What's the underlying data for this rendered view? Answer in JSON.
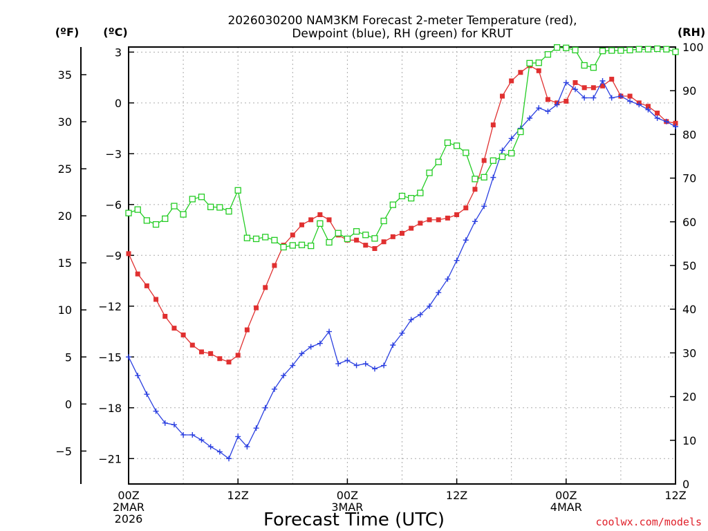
{
  "title_line1": "2026030200 NAM3KM Forecast 2-meter Temperature (red),",
  "title_line2": "Dewpoint (blue), RH (green) for KRUT",
  "unit_f": "(ºF)",
  "unit_c": "(ºC)",
  "unit_rh": "(RH)",
  "credit": "coolwx.com/models",
  "chart_data": {
    "type": "line",
    "title": "2026030200 NAM3KM Forecast 2-meter Temperature (red), Dewpoint (blue), RH (green) for KRUT",
    "xlabel": "Forecast Time (UTC)",
    "x_unit": "forecast hour",
    "xlim": [
      0,
      60
    ],
    "x_ticks": [
      {
        "hour": 0,
        "lines": [
          "00Z",
          "2MAR",
          "2026"
        ]
      },
      {
        "hour": 12,
        "lines": [
          "12Z"
        ]
      },
      {
        "hour": 24,
        "lines": [
          "00Z",
          "3MAR"
        ]
      },
      {
        "hour": 36,
        "lines": [
          "12Z"
        ]
      },
      {
        "hour": 48,
        "lines": [
          "00Z",
          "4MAR"
        ]
      },
      {
        "hour": 60,
        "lines": [
          "12Z"
        ]
      }
    ],
    "celsius_axis": {
      "label": "(ºC)",
      "lim": [
        -22.5,
        3.3
      ],
      "ticks": [
        "3",
        "0",
        "−3",
        "−6",
        "−9",
        "−12",
        "−15",
        "−18",
        "−21"
      ]
    },
    "fahrenheit_axis": {
      "label": "(ºF)",
      "ticks": [
        "35",
        "30",
        "25",
        "20",
        "15",
        "10",
        "5",
        "0",
        "−5"
      ]
    },
    "rh_axis": {
      "label": "(RH)",
      "lim": [
        0,
        100
      ],
      "ticks": [
        "100",
        "90",
        "80",
        "70",
        "60",
        "50",
        "40",
        "30",
        "20",
        "10",
        "0"
      ]
    },
    "series": [
      {
        "name": "2-meter Temperature",
        "unit": "°C",
        "color": "#e03030",
        "marker": "filled-square",
        "x": [
          0,
          1,
          2,
          3,
          4,
          5,
          6,
          7,
          8,
          9,
          10,
          11,
          12,
          13,
          14,
          15,
          16,
          17,
          18,
          19,
          20,
          21,
          22,
          23,
          24,
          25,
          26,
          27,
          28,
          29,
          30,
          31,
          32,
          33,
          34,
          35,
          36,
          37,
          38,
          39,
          40,
          41,
          42,
          43,
          44,
          45,
          46,
          47,
          48,
          49,
          50,
          51,
          52,
          53,
          54,
          55,
          56,
          57,
          58,
          59,
          60
        ],
        "values": [
          -8.9,
          -10.1,
          -10.8,
          -11.6,
          -12.6,
          -13.3,
          -13.7,
          -14.3,
          -14.7,
          -14.8,
          -15.1,
          -15.3,
          -14.9,
          -13.4,
          -12.1,
          -10.9,
          -9.6,
          -8.4,
          -7.8,
          -7.2,
          -6.9,
          -6.6,
          -6.9,
          -7.8,
          -8.1,
          -8.1,
          -8.4,
          -8.6,
          -8.2,
          -7.9,
          -7.7,
          -7.4,
          -7.1,
          -6.9,
          -6.9,
          -6.8,
          -6.6,
          -6.2,
          -5.1,
          -3.4,
          -1.3,
          0.4,
          1.3,
          1.8,
          2.2,
          1.9,
          0.2,
          0.0,
          0.1,
          1.2,
          0.9,
          0.9,
          1.0,
          1.4,
          0.4,
          0.4,
          0.0,
          -0.2,
          -0.6,
          -1.1,
          -1.2
        ]
      },
      {
        "name": "Dewpoint",
        "unit": "°C",
        "color": "#2a3fe0",
        "marker": "plus",
        "x": [
          0,
          1,
          2,
          3,
          4,
          5,
          6,
          7,
          8,
          9,
          10,
          11,
          12,
          13,
          14,
          15,
          16,
          17,
          18,
          19,
          20,
          21,
          22,
          23,
          24,
          25,
          26,
          27,
          28,
          29,
          30,
          31,
          32,
          33,
          34,
          35,
          36,
          37,
          38,
          39,
          40,
          41,
          42,
          43,
          44,
          45,
          46,
          47,
          48,
          49,
          50,
          51,
          52,
          53,
          54,
          55,
          56,
          57,
          58,
          59,
          60
        ],
        "values": [
          -15.0,
          -16.1,
          -17.2,
          -18.2,
          -18.9,
          -19.0,
          -19.6,
          -19.6,
          -19.9,
          -20.3,
          -20.6,
          -21.0,
          -19.7,
          -20.3,
          -19.2,
          -18.0,
          -16.9,
          -16.1,
          -15.5,
          -14.8,
          -14.4,
          -14.2,
          -13.5,
          -15.4,
          -15.2,
          -15.5,
          -15.4,
          -15.7,
          -15.5,
          -14.3,
          -13.6,
          -12.8,
          -12.5,
          -12.0,
          -11.2,
          -10.4,
          -9.3,
          -8.1,
          -7.0,
          -6.1,
          -4.4,
          -2.8,
          -2.1,
          -1.5,
          -0.9,
          -0.3,
          -0.5,
          -0.1,
          1.2,
          0.8,
          0.3,
          0.3,
          1.3,
          0.3,
          0.4,
          0.1,
          -0.1,
          -0.4,
          -0.9,
          -1.1,
          -1.4
        ]
      },
      {
        "name": "RH",
        "unit": "%",
        "color": "#22cc22",
        "marker": "open-square",
        "x": [
          0,
          1,
          2,
          3,
          4,
          5,
          6,
          7,
          8,
          9,
          10,
          11,
          12,
          13,
          14,
          15,
          16,
          17,
          18,
          19,
          20,
          21,
          22,
          23,
          24,
          25,
          26,
          27,
          28,
          29,
          30,
          31,
          32,
          33,
          34,
          35,
          36,
          37,
          38,
          39,
          40,
          41,
          42,
          43,
          44,
          45,
          46,
          47,
          48,
          49,
          50,
          51,
          52,
          53,
          54,
          55,
          56,
          57,
          58,
          59,
          60
        ],
        "values": [
          62,
          62.8,
          60.3,
          59.4,
          60.7,
          63.6,
          61.7,
          65.2,
          65.7,
          63.4,
          63.3,
          62.4,
          67.2,
          56.3,
          56.1,
          56.5,
          55.8,
          54.2,
          54.6,
          54.7,
          54.5,
          59.6,
          55.3,
          57.4,
          56.1,
          57.8,
          57.0,
          56.2,
          60.2,
          63.9,
          65.9,
          65.4,
          66.6,
          71.2,
          73.7,
          78.1,
          77.4,
          75.8,
          69.8,
          70.2,
          74.0,
          74.9,
          75.7,
          80.6,
          96.3,
          96.4,
          98.3,
          99.9,
          99.8,
          99.3,
          95.8,
          95.3,
          99.1,
          99.2,
          99.2,
          99.3,
          99.5,
          99.5,
          99.6,
          99.5,
          98.9
        ]
      }
    ]
  }
}
